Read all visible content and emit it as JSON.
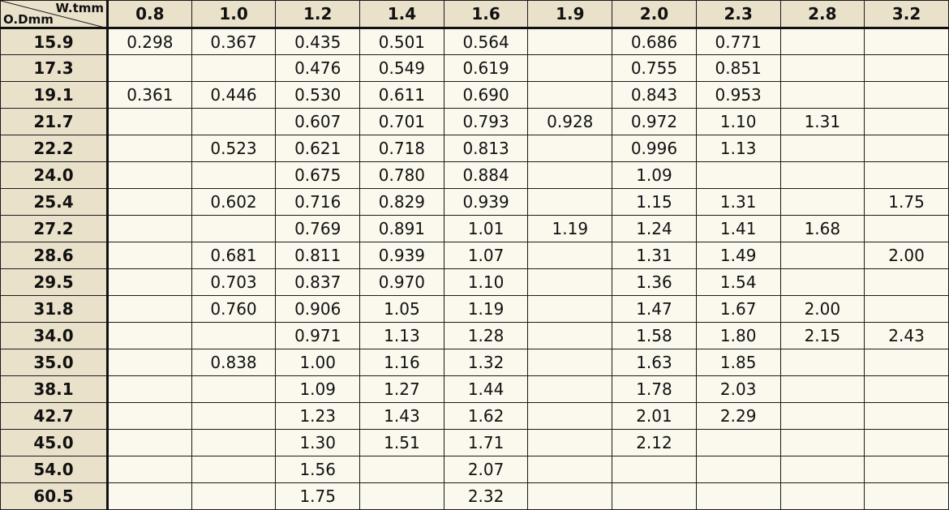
{
  "table": {
    "corner": {
      "column_axis_label": "W.tmm",
      "row_axis_label": "O.Dmm"
    },
    "columns": [
      "0.8",
      "1.0",
      "1.2",
      "1.4",
      "1.6",
      "1.9",
      "2.0",
      "2.3",
      "2.8",
      "3.2"
    ],
    "rows": [
      {
        "od": "15.9",
        "cells": [
          "0.298",
          "0.367",
          "0.435",
          "0.501",
          "0.564",
          "",
          "0.686",
          "0.771",
          "",
          ""
        ]
      },
      {
        "od": "17.3",
        "cells": [
          "",
          "",
          "0.476",
          "0.549",
          "0.619",
          "",
          "0.755",
          "0.851",
          "",
          ""
        ]
      },
      {
        "od": "19.1",
        "cells": [
          "0.361",
          "0.446",
          "0.530",
          "0.611",
          "0.690",
          "",
          "0.843",
          "0.953",
          "",
          ""
        ]
      },
      {
        "od": "21.7",
        "cells": [
          "",
          "",
          "0.607",
          "0.701",
          "0.793",
          "0.928",
          "0.972",
          "1.10",
          "1.31",
          ""
        ]
      },
      {
        "od": "22.2",
        "cells": [
          "",
          "0.523",
          "0.621",
          "0.718",
          "0.813",
          "",
          "0.996",
          "1.13",
          "",
          ""
        ]
      },
      {
        "od": "24.0",
        "cells": [
          "",
          "",
          "0.675",
          "0.780",
          "0.884",
          "",
          "1.09",
          "",
          "",
          ""
        ]
      },
      {
        "od": "25.4",
        "cells": [
          "",
          "0.602",
          "0.716",
          "0.829",
          "0.939",
          "",
          "1.15",
          "1.31",
          "",
          "1.75"
        ]
      },
      {
        "od": "27.2",
        "cells": [
          "",
          "",
          "0.769",
          "0.891",
          "1.01",
          "1.19",
          "1.24",
          "1.41",
          "1.68",
          ""
        ]
      },
      {
        "od": "28.6",
        "cells": [
          "",
          "0.681",
          "0.811",
          "0.939",
          "1.07",
          "",
          "1.31",
          "1.49",
          "",
          "2.00"
        ]
      },
      {
        "od": "29.5",
        "cells": [
          "",
          "0.703",
          "0.837",
          "0.970",
          "1.10",
          "",
          "1.36",
          "1.54",
          "",
          ""
        ]
      },
      {
        "od": "31.8",
        "cells": [
          "",
          "0.760",
          "0.906",
          "1.05",
          "1.19",
          "",
          "1.47",
          "1.67",
          "2.00",
          ""
        ]
      },
      {
        "od": "34.0",
        "cells": [
          "",
          "",
          "0.971",
          "1.13",
          "1.28",
          "",
          "1.58",
          "1.80",
          "2.15",
          "2.43"
        ]
      },
      {
        "od": "35.0",
        "cells": [
          "",
          "0.838",
          "1.00",
          "1.16",
          "1.32",
          "",
          "1.63",
          "1.85",
          "",
          ""
        ]
      },
      {
        "od": "38.1",
        "cells": [
          "",
          "",
          "1.09",
          "1.27",
          "1.44",
          "",
          "1.78",
          "2.03",
          "",
          ""
        ]
      },
      {
        "od": "42.7",
        "cells": [
          "",
          "",
          "1.23",
          "1.43",
          "1.62",
          "",
          "2.01",
          "2.29",
          "",
          ""
        ]
      },
      {
        "od": "45.0",
        "cells": [
          "",
          "",
          "1.30",
          "1.51",
          "1.71",
          "",
          "2.12",
          "",
          "",
          ""
        ]
      },
      {
        "od": "54.0",
        "cells": [
          "",
          "",
          "1.56",
          "",
          "2.07",
          "",
          "",
          "",
          "",
          ""
        ]
      },
      {
        "od": "60.5",
        "cells": [
          "",
          "",
          "1.75",
          "",
          "2.32",
          "",
          "",
          "",
          "",
          ""
        ]
      }
    ]
  }
}
